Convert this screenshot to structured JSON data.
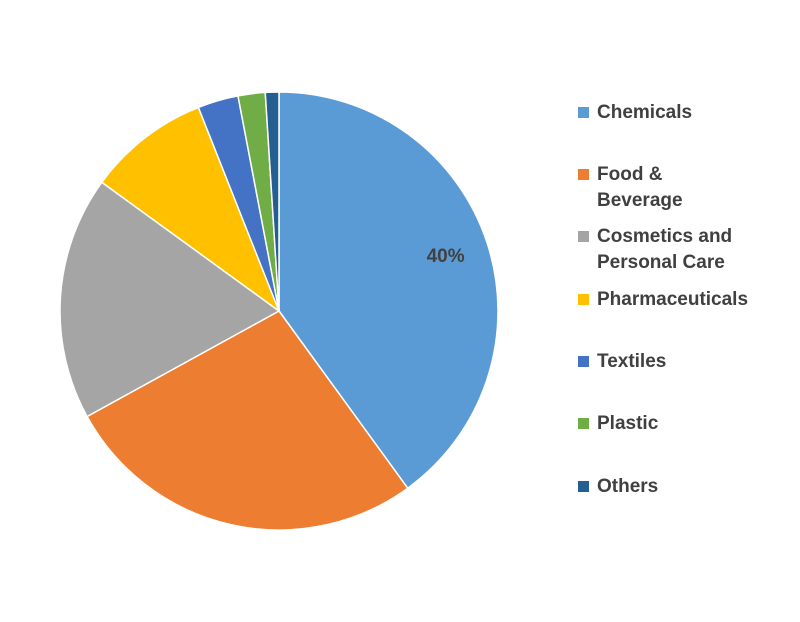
{
  "chart_data": {
    "type": "pie",
    "title": "",
    "start_angle_deg": 0,
    "direction": "clockwise",
    "slices": [
      {
        "label": "Chemicals",
        "value": 40,
        "color": "#5B9BD5",
        "data_label": "40%"
      },
      {
        "label": "Food & Beverage",
        "value": 27,
        "color": "#ED7D31",
        "data_label": ""
      },
      {
        "label": "Cosmetics and Personal Care",
        "value": 18,
        "color": "#A5A5A5",
        "data_label": ""
      },
      {
        "label": "Pharmaceuticals",
        "value": 9,
        "color": "#FFC000",
        "data_label": ""
      },
      {
        "label": "Textiles",
        "value": 3,
        "color": "#4472C4",
        "data_label": ""
      },
      {
        "label": "Plastic",
        "value": 2,
        "color": "#70AD47",
        "data_label": ""
      },
      {
        "label": "Others",
        "value": 1,
        "color": "#255E91",
        "data_label": ""
      }
    ],
    "legend_position": "right"
  },
  "legend": {
    "items": [
      {
        "label": "Chemicals"
      },
      {
        "label": "Food &\nBeverage"
      },
      {
        "label": "Cosmetics and\nPersonal Care"
      },
      {
        "label": "Pharmaceuticals"
      },
      {
        "label": "Textiles"
      },
      {
        "label": "Plastic"
      },
      {
        "label": "Others"
      }
    ]
  }
}
